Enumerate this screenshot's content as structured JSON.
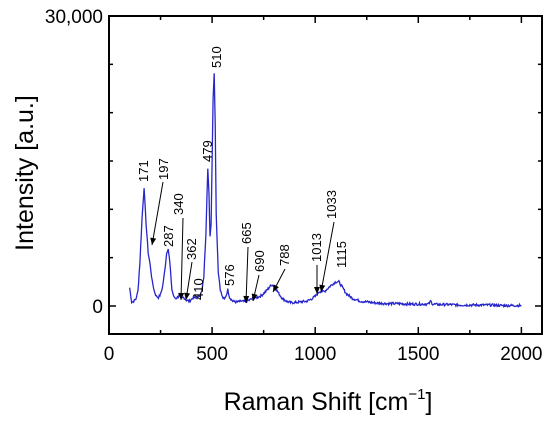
{
  "chart_data": {
    "type": "line",
    "title": "",
    "xlabel": "Raman Shift [cm",
    "xlabel_sup": "−1",
    "xlabel_end": "]",
    "ylabel": "Intensity [a.u.]",
    "xlim": [
      0,
      2100
    ],
    "ylim": [
      0,
      30000
    ],
    "x_ticks": [
      0,
      500,
      1000,
      1500,
      2000
    ],
    "x_tick_labels": [
      "0",
      "500",
      "1000",
      "1500",
      "2000"
    ],
    "y_ticks": [
      0,
      30000
    ],
    "y_tick_labels": [
      "0",
      "30,000"
    ],
    "grid": false,
    "line_color": "#2626cc",
    "series": [
      {
        "x": [
          100,
          110,
          120,
          130,
          140,
          150,
          160,
          170,
          180,
          190,
          200,
          210,
          220,
          230,
          240,
          250,
          260,
          270,
          280,
          287,
          295,
          305,
          315,
          325,
          335,
          340,
          350,
          362,
          375,
          390,
          400,
          410,
          420,
          430,
          440,
          450,
          460,
          470,
          479,
          485,
          490,
          495,
          500,
          505,
          510,
          515,
          520,
          530,
          540,
          550,
          560,
          570,
          576,
          585,
          600,
          620,
          640,
          660,
          665,
          680,
          690,
          700,
          720,
          740,
          760,
          780,
          788,
          800,
          820,
          840,
          860,
          880,
          900,
          920,
          940,
          960,
          980,
          1000,
          1013,
          1020,
          1033,
          1045,
          1060,
          1080,
          1100,
          1115,
          1130,
          1150,
          1180,
          1220,
          1260,
          1300,
          1350,
          1400,
          1450,
          1500,
          1550,
          1560,
          1570,
          1600,
          1650,
          1700,
          1750,
          1800,
          1850,
          1900,
          1950,
          2000
        ],
        "y": [
          1900,
          400,
          500,
          700,
          1500,
          4500,
          9000,
          12300,
          8500,
          5500,
          4200,
          2500,
          1500,
          1000,
          900,
          1200,
          2000,
          3600,
          5500,
          6000,
          4500,
          1700,
          900,
          800,
          950,
          1100,
          700,
          900,
          600,
          500,
          700,
          900,
          800,
          900,
          1100,
          1500,
          3000,
          7500,
          14200,
          11500,
          7200,
          8500,
          15000,
          21500,
          24000,
          19000,
          9500,
          3500,
          1700,
          900,
          700,
          1200,
          1700,
          900,
          500,
          400,
          500,
          450,
          500,
          600,
          700,
          800,
          900,
          1100,
          1500,
          2000,
          2200,
          2100,
          1400,
          800,
          500,
          350,
          350,
          400,
          450,
          500,
          700,
          1000,
          1300,
          1500,
          1500,
          1500,
          1800,
          2200,
          2500,
          2500,
          2000,
          1300,
          800,
          500,
          400,
          300,
          250,
          250,
          200,
          200,
          200,
          500,
          200,
          150,
          150,
          100,
          100,
          100,
          100,
          50,
          50,
          50
        ]
      }
    ],
    "peak_labels": [
      {
        "x": 171,
        "label": "171"
      },
      {
        "x": 197,
        "label": "197"
      },
      {
        "x": 287,
        "label": "287"
      },
      {
        "x": 340,
        "label": "340"
      },
      {
        "x": 362,
        "label": "362"
      },
      {
        "x": 410,
        "label": "410"
      },
      {
        "x": 479,
        "label": "479"
      },
      {
        "x": 510,
        "label": "510"
      },
      {
        "x": 576,
        "label": "576"
      },
      {
        "x": 665,
        "label": "665"
      },
      {
        "x": 690,
        "label": "690"
      },
      {
        "x": 788,
        "label": "788"
      },
      {
        "x": 1013,
        "label": "1013"
      },
      {
        "x": 1033,
        "label": "1033"
      },
      {
        "x": 1115,
        "label": "1115"
      }
    ]
  }
}
